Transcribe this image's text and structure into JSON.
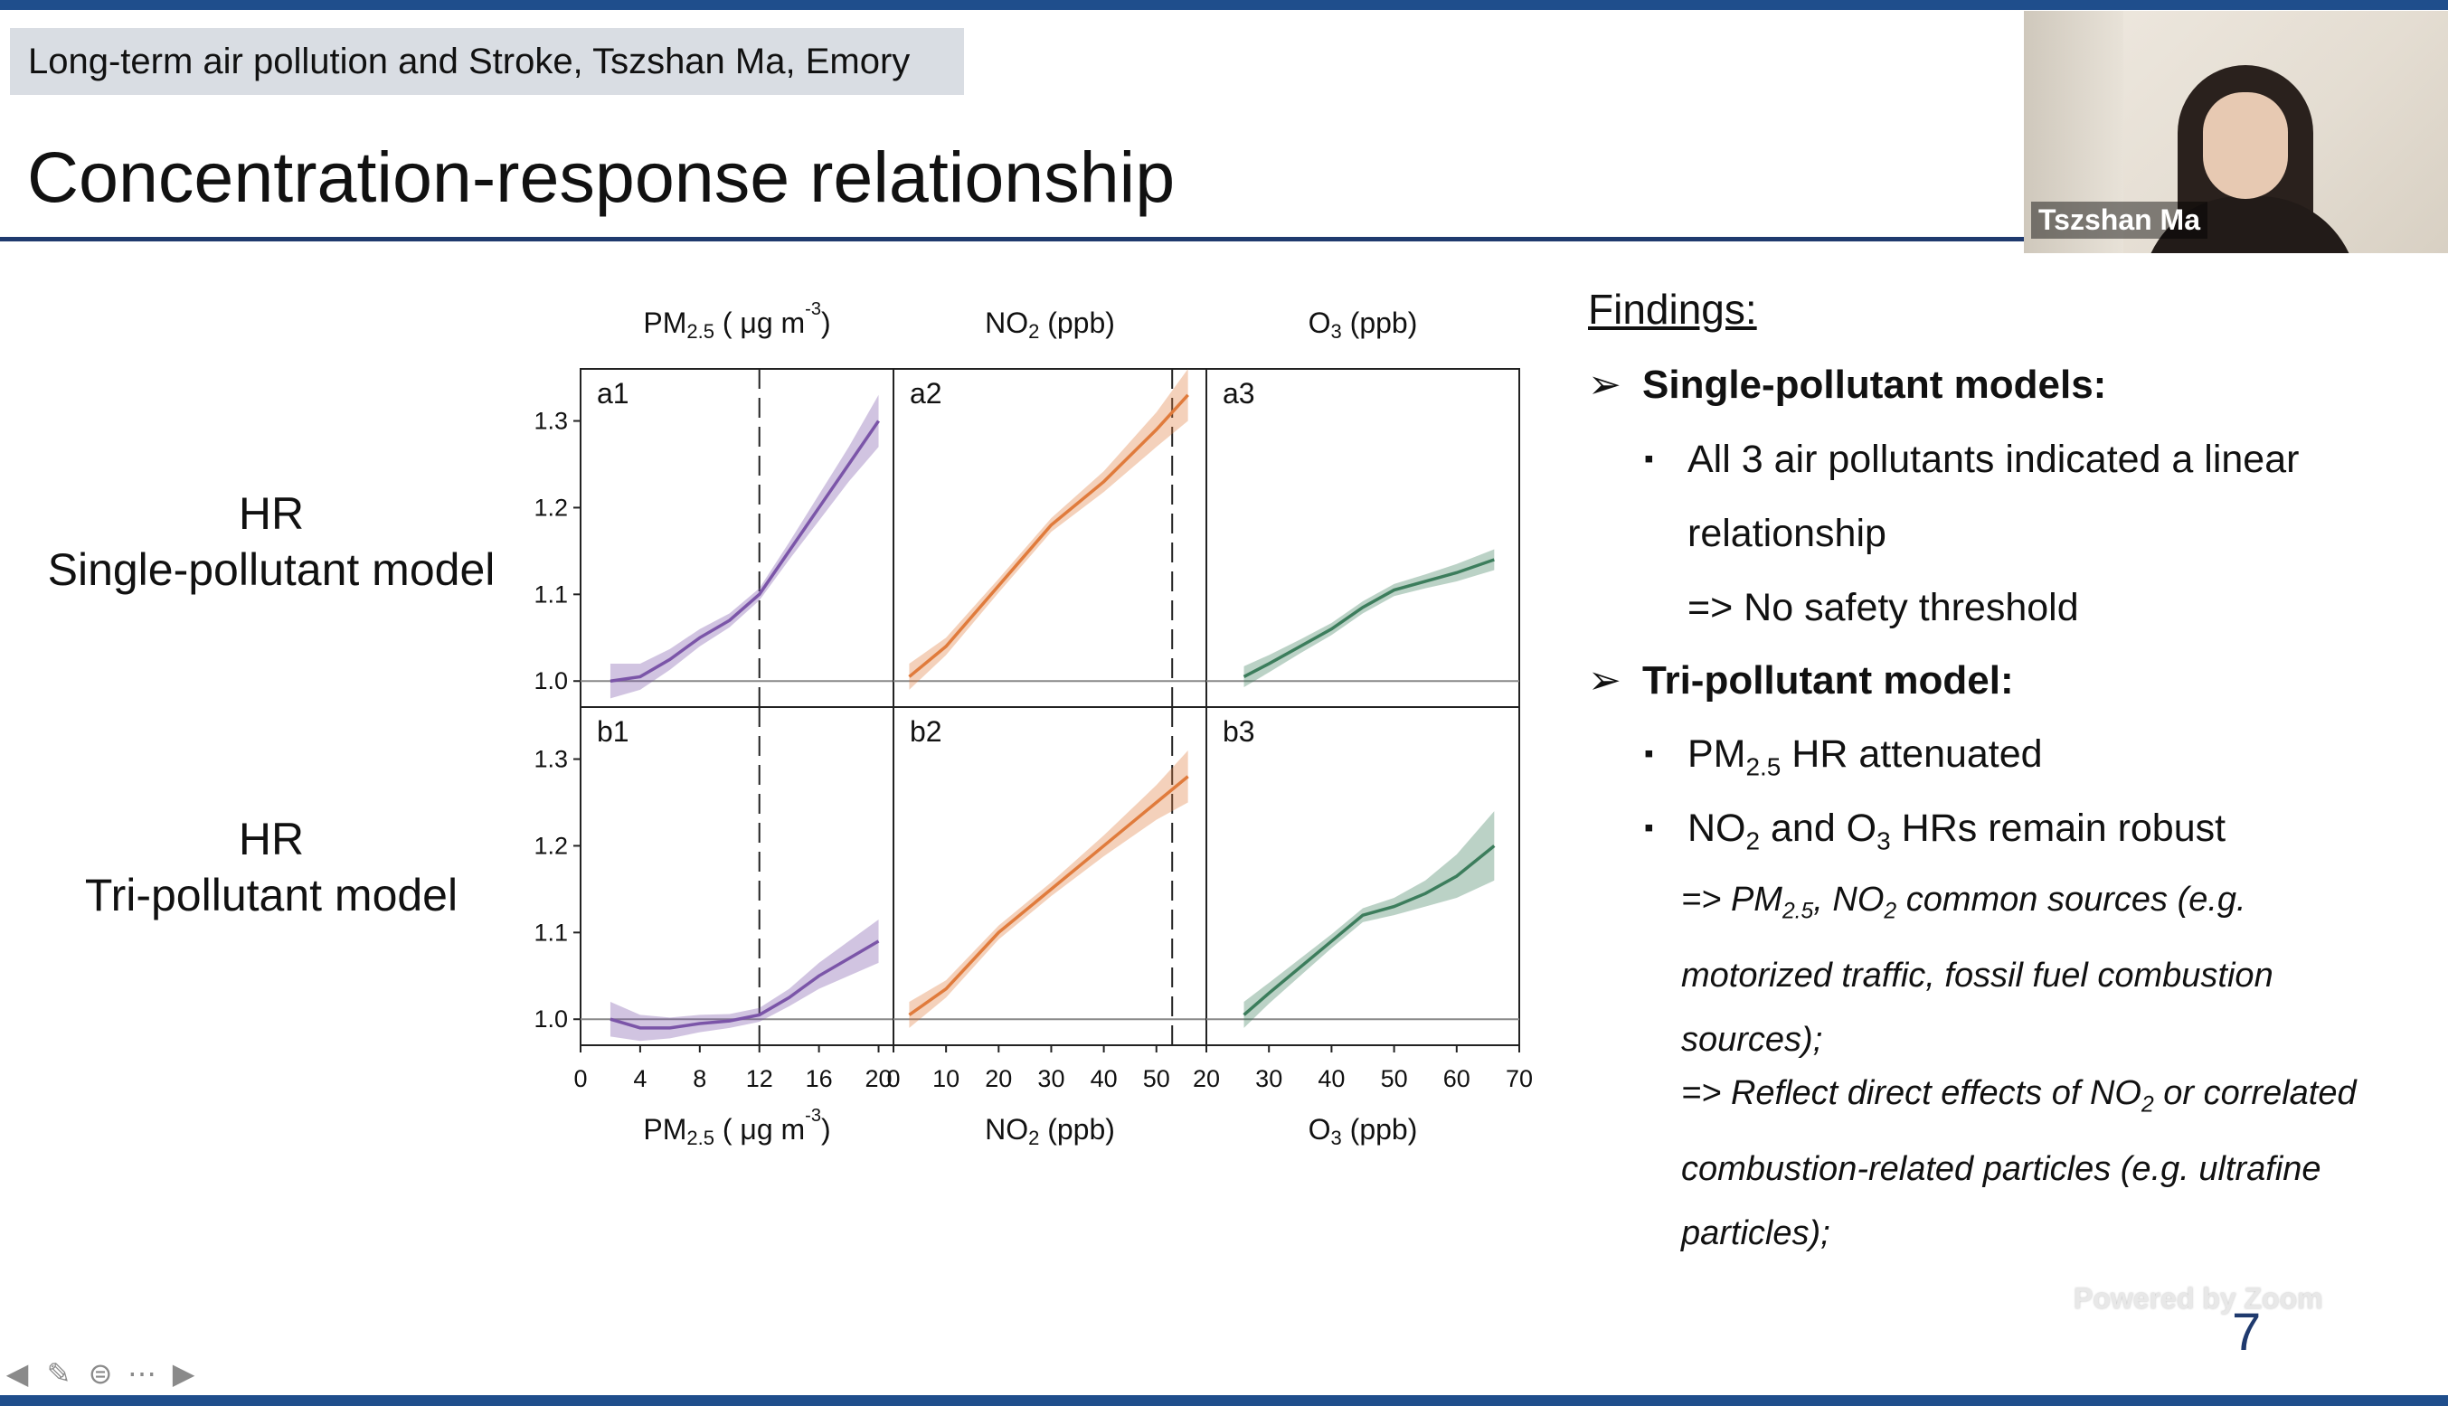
{
  "slide": {
    "header_tag": "Long-term air pollution and Stroke, Tszshan Ma, Emory",
    "title": "Concentration-response relationship",
    "page_number": "7"
  },
  "webcam": {
    "participant_name": "Tszshan Ma"
  },
  "row_labels": {
    "single_line1": "HR",
    "single_line2": "Single-pollutant model",
    "tri_line1": "HR",
    "tri_line2": "Tri-pollutant model"
  },
  "chart_data": {
    "type": "line",
    "y_ticks": [
      "1.0",
      "1.1",
      "1.2",
      "1.3"
    ],
    "ylim": [
      0.97,
      1.36
    ],
    "column_titles": [
      {
        "main": "PM",
        "sub": "2.5",
        "rest": " ( μg m",
        "sup": "-3",
        "end": ")"
      },
      {
        "main": "NO",
        "sub": "2",
        "rest": " (ppb)",
        "sup": "",
        "end": ""
      },
      {
        "main": "O",
        "sub": "3",
        "rest": " (ppb)",
        "sup": "",
        "end": ""
      }
    ],
    "columns": [
      {
        "xlim": [
          0,
          21
        ],
        "x_ticks": [
          "0",
          "4",
          "8",
          "12",
          "16",
          "20"
        ],
        "x_tick_values": [
          0,
          4,
          8,
          12,
          16,
          20
        ],
        "threshold": 12
      },
      {
        "xlim": [
          0,
          59.5
        ],
        "x_ticks": [
          "0",
          "10",
          "20",
          "30",
          "40",
          "50"
        ],
        "x_tick_values": [
          0,
          10,
          20,
          30,
          40,
          50
        ],
        "threshold": 53
      },
      {
        "xlim": [
          20,
          70
        ],
        "x_ticks": [
          "20",
          "30",
          "40",
          "50",
          "60",
          "70"
        ],
        "x_tick_values": [
          20,
          30,
          40,
          50,
          60,
          70
        ],
        "threshold": null
      }
    ],
    "panels": [
      {
        "label": "a1",
        "row": 0,
        "col": 0,
        "color": "#7b55a8",
        "x": [
          2,
          4,
          6,
          8,
          10,
          12,
          14,
          16,
          18,
          20
        ],
        "y": [
          1.0,
          1.005,
          1.025,
          1.05,
          1.07,
          1.1,
          1.15,
          1.2,
          1.25,
          1.3
        ],
        "band": [
          0.02,
          0.015,
          0.012,
          0.01,
          0.008,
          0.007,
          0.01,
          0.015,
          0.02,
          0.03
        ]
      },
      {
        "label": "a2",
        "row": 0,
        "col": 1,
        "color": "#e07b3c",
        "x": [
          3,
          10,
          20,
          30,
          40,
          50,
          56
        ],
        "y": [
          1.005,
          1.04,
          1.11,
          1.18,
          1.23,
          1.29,
          1.33
        ],
        "band": [
          0.015,
          0.01,
          0.008,
          0.008,
          0.012,
          0.02,
          0.03
        ]
      },
      {
        "label": "a3",
        "row": 0,
        "col": 2,
        "color": "#3c7d5c",
        "x": [
          26,
          30,
          35,
          40,
          45,
          50,
          55,
          60,
          66
        ],
        "y": [
          1.005,
          1.02,
          1.04,
          1.06,
          1.085,
          1.105,
          1.115,
          1.125,
          1.14
        ],
        "band": [
          0.012,
          0.01,
          0.008,
          0.007,
          0.007,
          0.007,
          0.008,
          0.01,
          0.012
        ]
      },
      {
        "label": "b1",
        "row": 1,
        "col": 0,
        "color": "#7b55a8",
        "x": [
          2,
          4,
          6,
          8,
          10,
          12,
          14,
          16,
          18,
          20
        ],
        "y": [
          1.0,
          0.99,
          0.99,
          0.995,
          0.998,
          1.005,
          1.025,
          1.05,
          1.07,
          1.09
        ],
        "band": [
          0.02,
          0.015,
          0.012,
          0.01,
          0.008,
          0.008,
          0.01,
          0.015,
          0.02,
          0.025
        ]
      },
      {
        "label": "b2",
        "row": 1,
        "col": 1,
        "color": "#e07b3c",
        "x": [
          3,
          10,
          20,
          30,
          40,
          50,
          56
        ],
        "y": [
          1.005,
          1.035,
          1.1,
          1.15,
          1.2,
          1.25,
          1.28
        ],
        "band": [
          0.015,
          0.01,
          0.008,
          0.008,
          0.012,
          0.02,
          0.03
        ]
      },
      {
        "label": "b3",
        "row": 1,
        "col": 2,
        "color": "#3c7d5c",
        "x": [
          26,
          30,
          35,
          40,
          45,
          50,
          55,
          60,
          66
        ],
        "y": [
          1.005,
          1.03,
          1.06,
          1.09,
          1.12,
          1.13,
          1.145,
          1.165,
          1.2
        ],
        "band": [
          0.015,
          0.012,
          0.01,
          0.008,
          0.008,
          0.01,
          0.015,
          0.025,
          0.04
        ]
      }
    ]
  },
  "findings": {
    "title": "Findings:",
    "arrow": "➢",
    "bullet": "▪",
    "single_head": "Single-pollutant models:",
    "single_b1_line1": "All 3 air pollutants indicated a linear",
    "single_b1_line2": "relationship",
    "single_note": "=> No safety threshold",
    "tri_head": "Tri-pollutant model:",
    "tri_b1_a": "PM",
    "tri_b1_sub": "2.5",
    "tri_b1_b": " HR attenuated",
    "tri_b2_a": "NO",
    "tri_b2_sub1": "2",
    "tri_b2_b": " and O",
    "tri_b2_sub2": "3",
    "tri_b2_c": " HRs remain robust",
    "note1_a": "=> PM",
    "note1_sub1": "2.5",
    "note1_b": ", NO",
    "note1_sub2": "2",
    "note1_c": " common sources (e.g.",
    "note1_line2": "motorized traffic, fossil fuel combustion",
    "note1_line3": "sources);",
    "note2_a": "=> Reflect direct effects of NO",
    "note2_sub": "2",
    "note2_b": " or correlated",
    "note2_line2": "combustion-related particles (e.g. ultrafine",
    "note2_line3": "particles);"
  },
  "toolbar": [
    "back-arrow-icon",
    "pen-icon",
    "subtitles-icon",
    "more-icon",
    "forward-arrow-icon"
  ],
  "watermark": "Powered by Zoom"
}
